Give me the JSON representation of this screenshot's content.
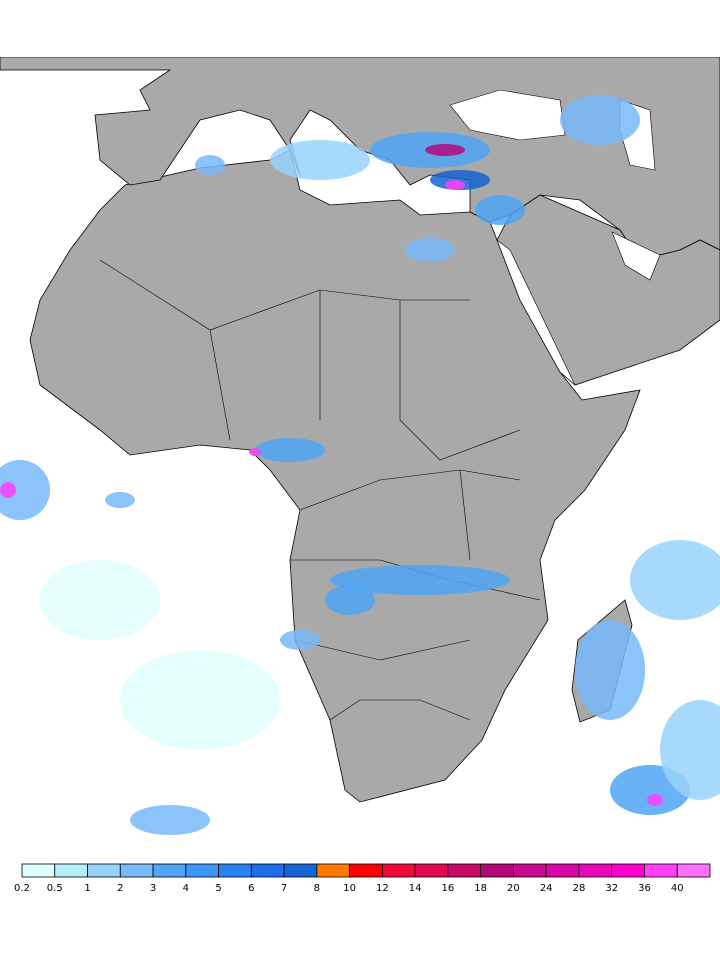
{
  "map": {
    "land_color": "#a9a9a9",
    "sea_color": "#ffffff",
    "border_color": "#000000"
  },
  "colorbar": {
    "labels": [
      "0.2",
      "0.5",
      "1",
      "2",
      "3",
      "4",
      "5",
      "6",
      "7",
      "8",
      "10",
      "12",
      "14",
      "16",
      "18",
      "20",
      "24",
      "28",
      "32",
      "36",
      "40"
    ],
    "colors": [
      "#e0ffff",
      "#b4f0f8",
      "#96d2fa",
      "#78b9fa",
      "#50a5f5",
      "#3c96f5",
      "#2882f0",
      "#1e6eeb",
      "#1464d2",
      "#ff7800",
      "#ff0000",
      "#f0083c",
      "#e00a50",
      "#c80a64",
      "#b4087a",
      "#c80890",
      "#d808a8",
      "#e808b8",
      "#ff00d0",
      "#ff40f8",
      "#ff70ff"
    ]
  }
}
